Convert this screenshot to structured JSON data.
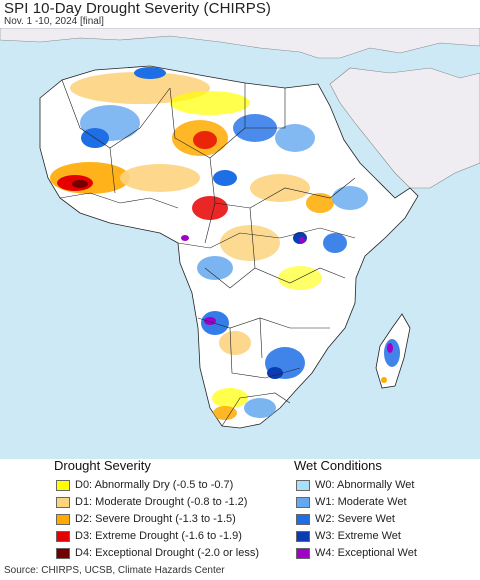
{
  "title": "SPI 10-Day Drought Severity (CHIRPS)",
  "subtitle": "Nov. 1 -10, 2024 [final]",
  "map": {
    "ocean_color": "#cde9f6",
    "land_base_color": "#ffffff",
    "outside_region_color": "#efedf2",
    "border_color": "#222222"
  },
  "legend": {
    "drought": {
      "title": "Drought Severity",
      "items": [
        {
          "code": "D0",
          "label": "D0: Abnormally Dry (-0.5 to -0.7)",
          "color": "#ffff00"
        },
        {
          "code": "D1",
          "label": "D1: Moderate Drought (-0.8 to -1.2)",
          "color": "#fcd37f"
        },
        {
          "code": "D2",
          "label": "D2: Severe Drought (-1.3 to -1.5)",
          "color": "#ffaa00"
        },
        {
          "code": "D3",
          "label": "D3: Extreme Drought (-1.6 to -1.9)",
          "color": "#e60000"
        },
        {
          "code": "D4",
          "label": "D4: Exceptional Drought (-2.0 or less)",
          "color": "#730000"
        }
      ]
    },
    "wet": {
      "title": "Wet Conditions",
      "items": [
        {
          "code": "W0",
          "label": "W0: Abnormally Wet",
          "color": "#aadeff"
        },
        {
          "code": "W1",
          "label": "W1: Moderate Wet",
          "color": "#64a8ef"
        },
        {
          "code": "W2",
          "label": "W2: Severe Wet",
          "color": "#1e6ee6"
        },
        {
          "code": "W3",
          "label": "W3: Extreme Wet",
          "color": "#0a3cb4"
        },
        {
          "code": "W4",
          "label": "W4: Exceptional Wet",
          "color": "#a000c8"
        }
      ]
    }
  },
  "source": "Source: CHIRPS, UCSB, Climate Hazards Center"
}
